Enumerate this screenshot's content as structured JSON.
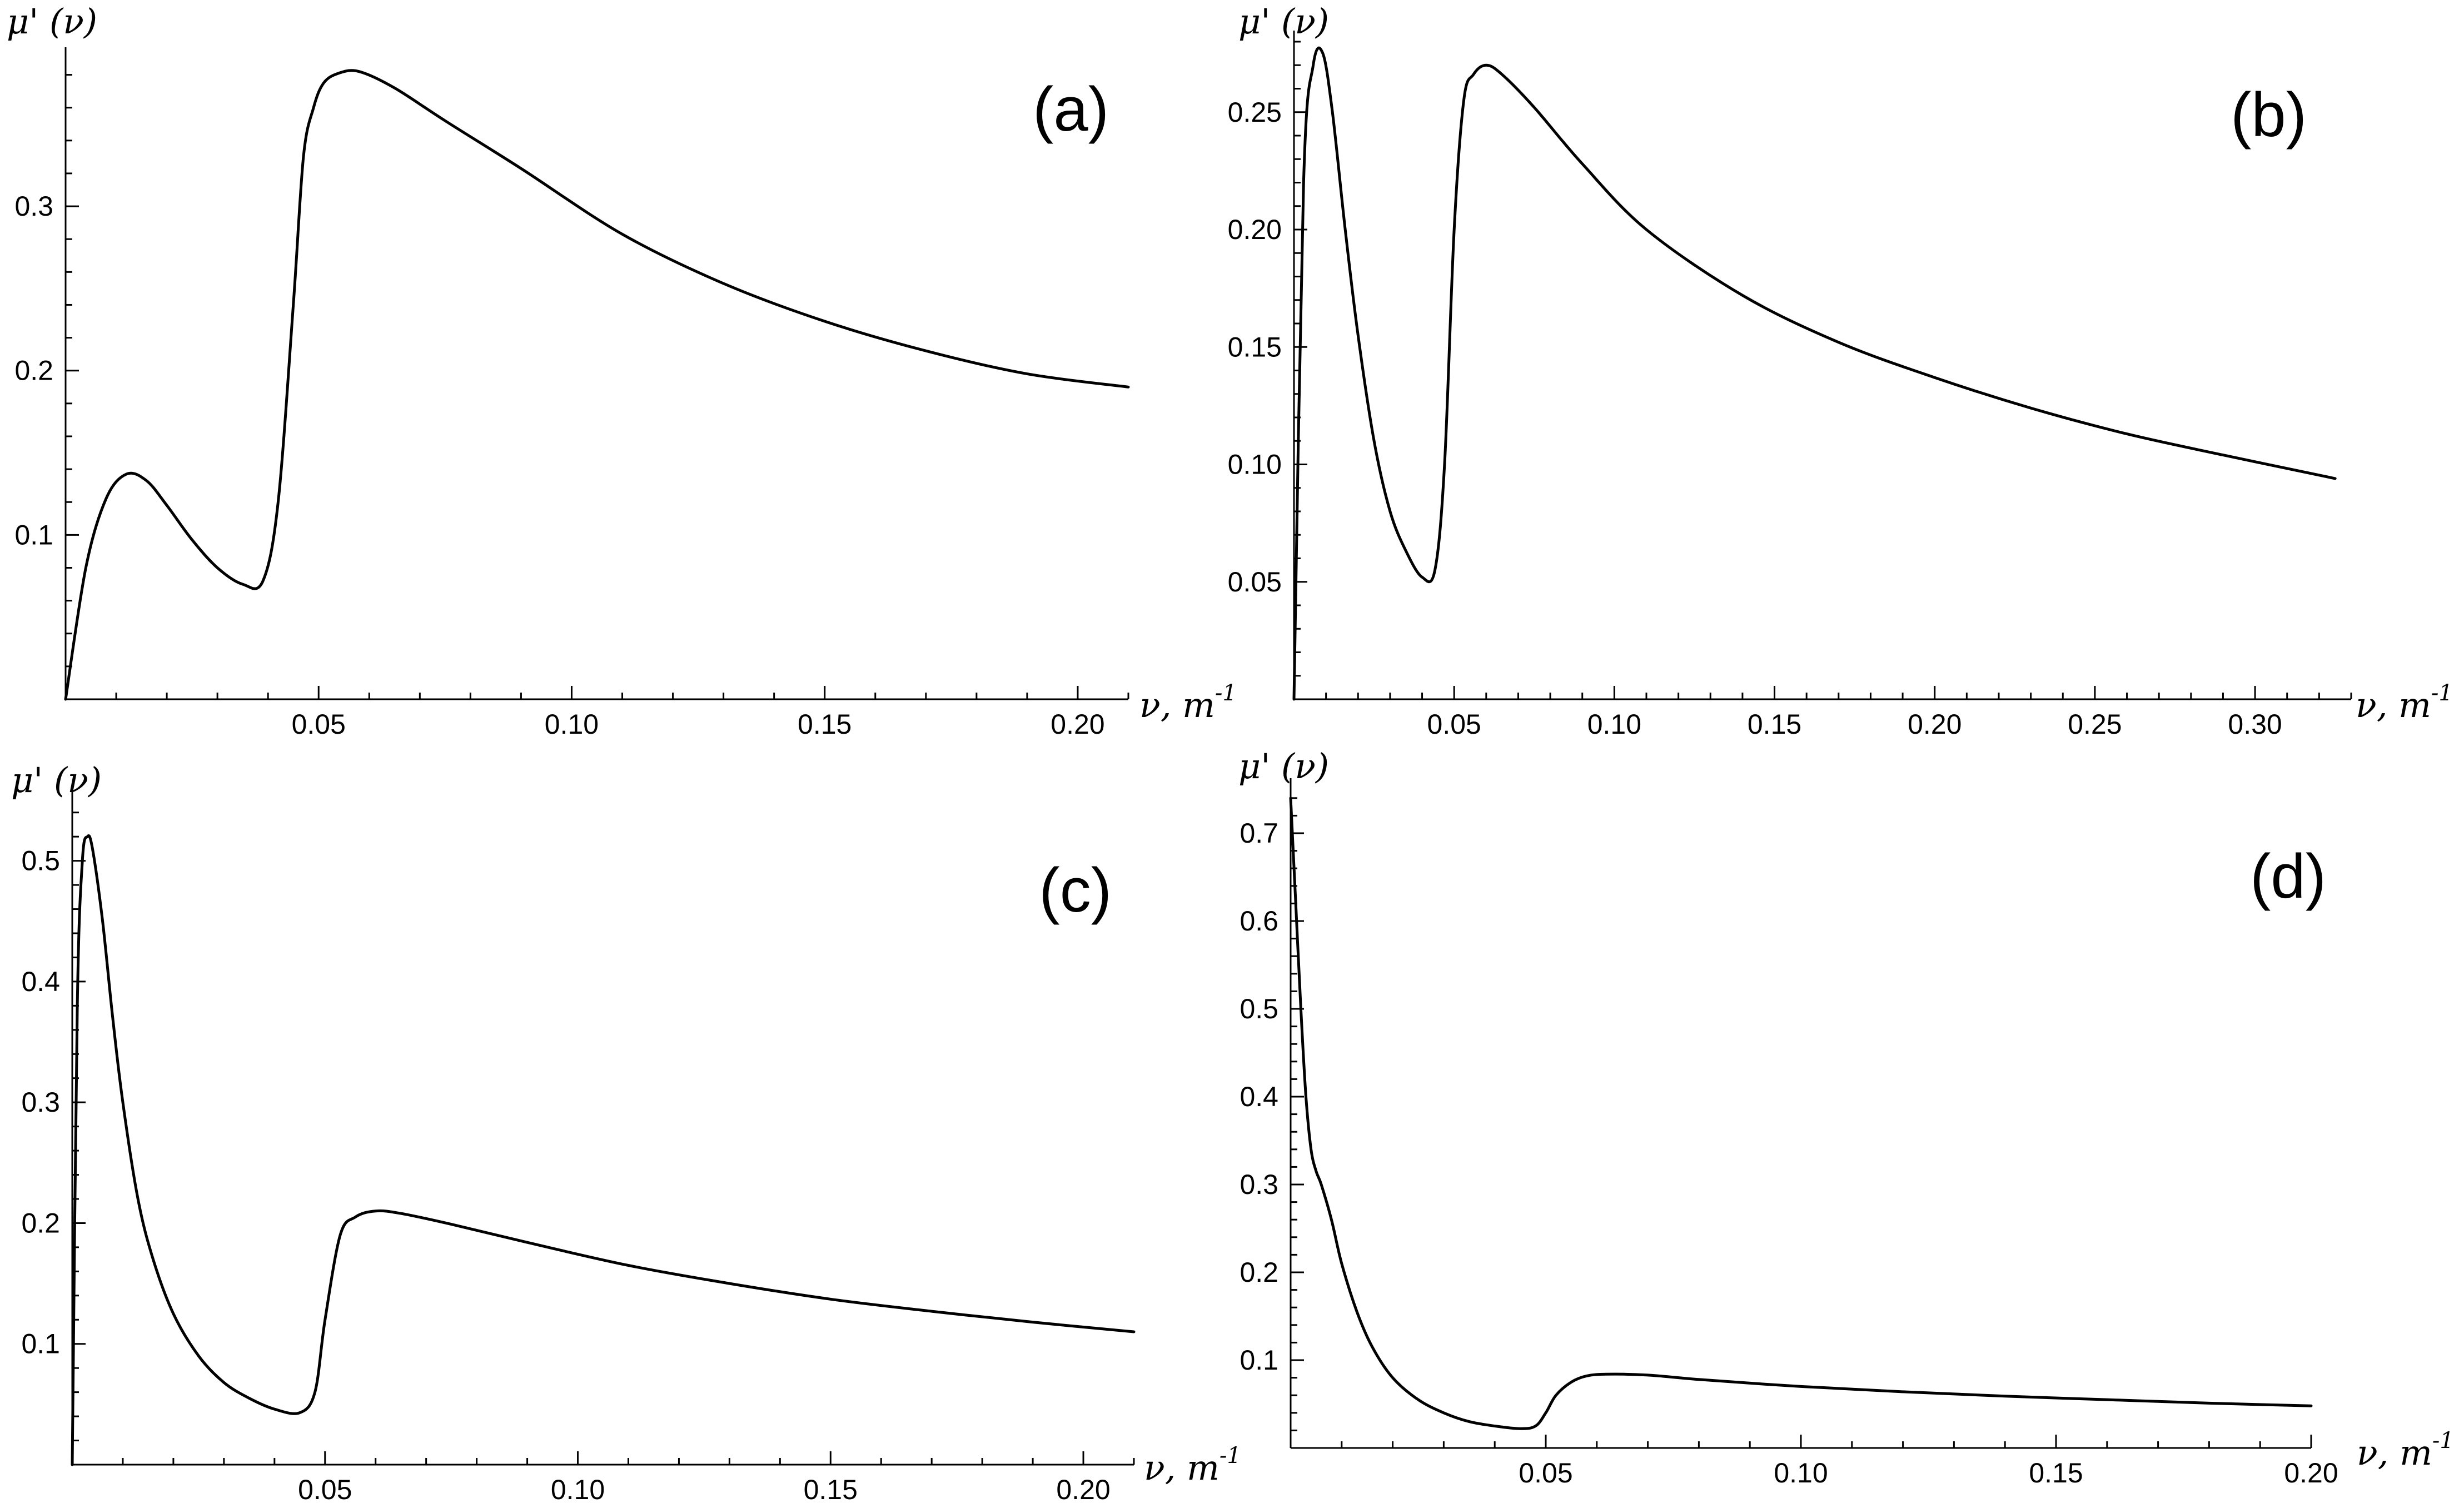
{
  "chart_data": [
    {
      "type": "line",
      "panel_label": "(a)",
      "ylabel": "μ' (ν)",
      "xlabel": "ν, m",
      "xlabel_sup": "-1",
      "xlim": [
        0,
        0.21
      ],
      "ylim": [
        0,
        0.39
      ],
      "xticks": [
        0.05,
        0.1,
        0.15,
        0.2
      ],
      "xtick_labels": [
        "0.05",
        "0.10",
        "0.15",
        "0.20"
      ],
      "yticks": [
        0.1,
        0.2,
        0.3
      ],
      "ytick_labels": [
        "0.1",
        "0.2",
        "0.3"
      ],
      "series": [
        {
          "x": [
            0,
            0.004,
            0.008,
            0.012,
            0.016,
            0.02,
            0.025,
            0.03,
            0.035,
            0.039,
            0.042,
            0.045,
            0.047,
            0.049,
            0.051,
            0.054,
            0.058,
            0.065,
            0.075,
            0.09,
            0.11,
            0.13,
            0.15,
            0.17,
            0.19,
            0.21
          ],
          "y": [
            0,
            0.08,
            0.122,
            0.137,
            0.133,
            0.118,
            0.097,
            0.08,
            0.07,
            0.072,
            0.12,
            0.24,
            0.33,
            0.36,
            0.375,
            0.381,
            0.382,
            0.372,
            0.352,
            0.323,
            0.283,
            0.253,
            0.23,
            0.212,
            0.198,
            0.19
          ]
        }
      ]
    },
    {
      "type": "line",
      "panel_label": "(b)",
      "ylabel": "μ' (ν)",
      "xlabel": "ν, m",
      "xlabel_sup": "-1",
      "xlim": [
        0,
        0.33
      ],
      "ylim": [
        0,
        0.28
      ],
      "xticks": [
        0.05,
        0.1,
        0.15,
        0.2,
        0.25,
        0.3
      ],
      "xtick_labels": [
        "0.05",
        "0.10",
        "0.15",
        "0.20",
        "0.25",
        "0.30"
      ],
      "yticks": [
        0.05,
        0.1,
        0.15,
        0.2,
        0.25
      ],
      "ytick_labels": [
        "0.05",
        "0.10",
        "0.15",
        "0.20",
        "0.25"
      ],
      "series": [
        {
          "x": [
            0,
            0.003,
            0.006,
            0.009,
            0.012,
            0.016,
            0.02,
            0.025,
            0.03,
            0.035,
            0.04,
            0.044,
            0.047,
            0.05,
            0.053,
            0.056,
            0.06,
            0.065,
            0.075,
            0.09,
            0.11,
            0.14,
            0.17,
            0.2,
            0.23,
            0.26,
            0.29,
            0.325
          ],
          "y": [
            0,
            0.22,
            0.27,
            0.275,
            0.25,
            0.2,
            0.155,
            0.11,
            0.08,
            0.063,
            0.052,
            0.055,
            0.1,
            0.2,
            0.255,
            0.266,
            0.27,
            0.266,
            0.252,
            0.228,
            0.2,
            0.172,
            0.152,
            0.137,
            0.124,
            0.113,
            0.104,
            0.094
          ]
        }
      ]
    },
    {
      "type": "line",
      "panel_label": "(c)",
      "ylabel": "μ' (ν)",
      "xlabel": "ν, m",
      "xlabel_sup": "-1",
      "xlim": [
        0,
        0.21
      ],
      "ylim": [
        0,
        0.55
      ],
      "xticks": [
        0.05,
        0.1,
        0.15,
        0.2
      ],
      "xtick_labels": [
        "0.05",
        "0.10",
        "0.15",
        "0.20"
      ],
      "yticks": [
        0.1,
        0.2,
        0.3,
        0.4,
        0.5
      ],
      "ytick_labels": [
        "0.1",
        "0.2",
        "0.3",
        "0.4",
        "0.5"
      ],
      "series": [
        {
          "x": [
            0,
            0.001,
            0.002,
            0.003,
            0.004,
            0.006,
            0.008,
            0.01,
            0.013,
            0.016,
            0.02,
            0.025,
            0.03,
            0.035,
            0.04,
            0.045,
            0.048,
            0.05,
            0.053,
            0.056,
            0.06,
            0.065,
            0.075,
            0.09,
            0.11,
            0.13,
            0.15,
            0.17,
            0.19,
            0.21
          ],
          "y": [
            0,
            0.38,
            0.5,
            0.52,
            0.51,
            0.45,
            0.37,
            0.3,
            0.22,
            0.17,
            0.125,
            0.09,
            0.068,
            0.055,
            0.046,
            0.043,
            0.06,
            0.12,
            0.19,
            0.205,
            0.21,
            0.208,
            0.199,
            0.184,
            0.165,
            0.15,
            0.137,
            0.127,
            0.118,
            0.11
          ]
        }
      ]
    },
    {
      "type": "line",
      "panel_label": "(d)",
      "ylabel": "μ' (ν)",
      "xlabel": "ν, m",
      "xlabel_sup": "-1",
      "xlim": [
        0,
        0.2
      ],
      "ylim": [
        0,
        0.75
      ],
      "xticks": [
        0.05,
        0.1,
        0.15,
        0.2
      ],
      "xtick_labels": [
        "0.05",
        "0.10",
        "0.15",
        "0.20"
      ],
      "yticks": [
        0.1,
        0.2,
        0.3,
        0.4,
        0.5,
        0.6,
        0.7
      ],
      "ytick_labels": [
        "0.1",
        "0.2",
        "0.3",
        "0.4",
        "0.5",
        "0.6",
        "0.7"
      ],
      "series": [
        {
          "x": [
            0,
            0.001,
            0.002,
            0.003,
            0.004,
            0.005,
            0.006,
            0.008,
            0.01,
            0.013,
            0.016,
            0.02,
            0.025,
            0.03,
            0.035,
            0.04,
            0.045,
            0.048,
            0.05,
            0.052,
            0.055,
            0.058,
            0.062,
            0.07,
            0.08,
            0.1,
            0.12,
            0.14,
            0.16,
            0.18,
            0.2
          ],
          "y": [
            0.74,
            0.62,
            0.5,
            0.4,
            0.34,
            0.315,
            0.3,
            0.26,
            0.21,
            0.155,
            0.115,
            0.08,
            0.055,
            0.04,
            0.03,
            0.025,
            0.022,
            0.025,
            0.04,
            0.06,
            0.075,
            0.082,
            0.084,
            0.083,
            0.078,
            0.07,
            0.064,
            0.059,
            0.055,
            0.051,
            0.048
          ]
        }
      ]
    }
  ]
}
